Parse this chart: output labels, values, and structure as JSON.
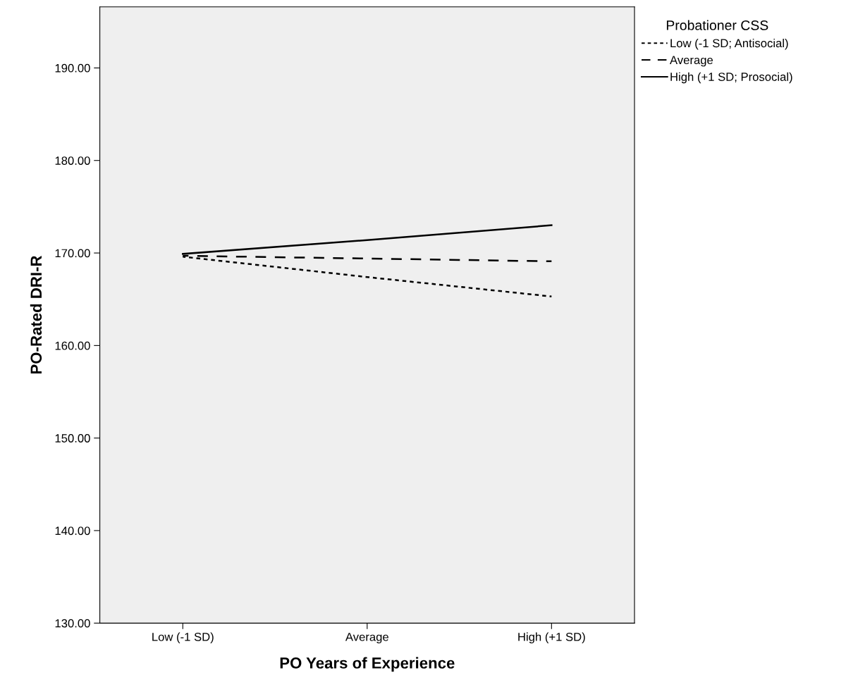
{
  "chart_data": {
    "type": "line",
    "xlabel": "PO Years of Experience",
    "ylabel": "PO-Rated DRI-R",
    "legend_title": "Probationer CSS",
    "categories": [
      "Low (-1 SD)",
      "Average",
      "High (+1 SD)"
    ],
    "series": [
      {
        "name": "Low (-1 SD; Antisocial)",
        "color": "#000000",
        "line_style": "dotted",
        "values": [
          169.6,
          167.4,
          165.3
        ]
      },
      {
        "name": "Average",
        "color": "#000000",
        "line_style": "dashed",
        "values": [
          169.7,
          169.4,
          169.1
        ]
      },
      {
        "name": "High (+1 SD; Prosocial)",
        "color": "#000000",
        "line_style": "solid",
        "values": [
          169.9,
          171.4,
          173.0
        ]
      }
    ],
    "ylim": [
      130,
      196.6
    ],
    "yticks": [
      {
        "value": 130,
        "label": "130.00"
      },
      {
        "value": 140,
        "label": "140.00"
      },
      {
        "value": 150,
        "label": "150.00"
      },
      {
        "value": 160,
        "label": "160.00"
      },
      {
        "value": 170,
        "label": "170.00"
      },
      {
        "value": 180,
        "label": "180.00"
      },
      {
        "value": 190,
        "label": "190.00"
      }
    ],
    "grid": false,
    "legend": "top right",
    "marker": "none"
  }
}
